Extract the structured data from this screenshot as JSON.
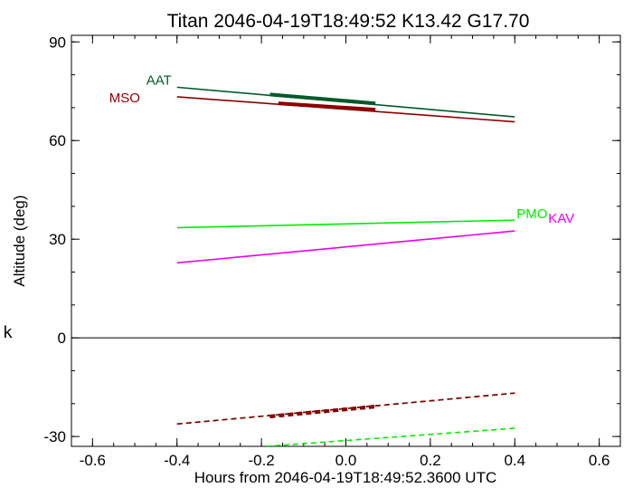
{
  "chart_data": {
    "type": "line",
    "title": "Titan 2046-04-19T18:49:52  K13.42  G17.70",
    "xlabel": "Hours from 2046-04-19T18:49:52.3600 UTC",
    "ylabel": "Altitude (deg)",
    "side_label": "k",
    "xlim": [
      -0.65,
      0.65
    ],
    "ylim": [
      -33,
      92
    ],
    "x_ticks": [
      -0.6,
      -0.4,
      -0.2,
      0.0,
      0.2,
      0.4,
      0.6
    ],
    "x_tick_labels": [
      "-0.6",
      "-0.4",
      "-0.2",
      "0.0",
      "0.2",
      "0.4",
      "0.6"
    ],
    "y_ticks": [
      -30,
      0,
      30,
      60,
      90
    ],
    "y_tick_labels": [
      "-30",
      "0",
      "30",
      "60",
      "90"
    ],
    "zero_line": true,
    "grid": false,
    "series": [
      {
        "name": "AAT",
        "color": "#005a2a",
        "style": "solid",
        "x": [
          -0.4,
          0.4
        ],
        "y": [
          76.2,
          67.2
        ],
        "thick_x": [
          -0.18,
          0.07
        ],
        "thick_y": [
          74.0,
          71.3
        ]
      },
      {
        "name": "MSO",
        "color": "#8b0000",
        "style": "solid",
        "x": [
          -0.4,
          0.4
        ],
        "y": [
          73.3,
          65.7
        ],
        "thick_x": [
          -0.16,
          0.07
        ],
        "thick_y": [
          71.3,
          69.4
        ]
      },
      {
        "name": "PMO",
        "color": "#00ee00",
        "style": "solid",
        "x": [
          -0.4,
          0.4
        ],
        "y": [
          33.5,
          35.8
        ]
      },
      {
        "name": "KAV",
        "color": "#ee00ee",
        "style": "solid",
        "x": [
          -0.4,
          0.4
        ],
        "y": [
          22.8,
          32.5
        ]
      },
      {
        "name": "",
        "color": "#005a2a",
        "style": "dashed",
        "x": [
          -0.4,
          0.4
        ],
        "y": [
          -26.2,
          -16.8
        ],
        "thick_x": [
          -0.18,
          0.07
        ],
        "thick_y": [
          -23.9,
          -20.9
        ]
      },
      {
        "name": "",
        "color": "#8b0000",
        "style": "dashed",
        "x": [
          -0.4,
          0.4
        ],
        "y": [
          -26.2,
          -16.8
        ],
        "thick_x": [
          -0.18,
          0.07
        ],
        "thick_y": [
          -23.9,
          -20.9
        ]
      },
      {
        "name": "",
        "color": "#00ee00",
        "style": "dashed",
        "x": [
          -0.19,
          0.4
        ],
        "y": [
          -33.0,
          -27.5
        ]
      }
    ]
  }
}
